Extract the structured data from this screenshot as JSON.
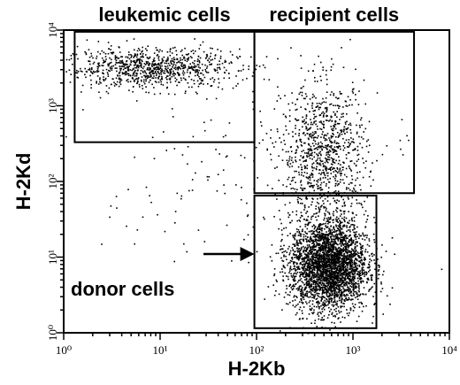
{
  "chart_data": {
    "type": "scatter",
    "xlabel": "H-2Kb",
    "ylabel": "H-2Kd",
    "x_scale": "log",
    "y_scale": "log",
    "xlim": [
      1,
      10000
    ],
    "ylim": [
      1,
      10000
    ],
    "x_tick_labels": [
      "10⁰",
      "10¹",
      "10²",
      "10³",
      "10⁴"
    ],
    "y_tick_labels": [
      "10⁰",
      "10¹",
      "10²",
      "10³",
      "10⁴"
    ],
    "grid": false,
    "gates": [
      {
        "label": "leukemic cells",
        "x_range": [
          1.3,
          95
        ],
        "y_range": [
          330,
          9500
        ]
      },
      {
        "label": "recipient cells",
        "x_range": [
          95,
          4300
        ],
        "y_range": [
          70,
          9500
        ]
      },
      {
        "label": "",
        "x_range": [
          95,
          1750
        ],
        "y_range": [
          1.15,
          65
        ]
      }
    ],
    "annotation": {
      "text": "donor cells",
      "arrow_to": [
        95,
        11
      ]
    },
    "populations": [
      {
        "center": [
          8,
          3200
        ],
        "spread_log": [
          0.45,
          0.13
        ],
        "count": 900
      },
      {
        "center": [
          500,
          250
        ],
        "spread_log": [
          0.22,
          0.45
        ],
        "count": 900
      },
      {
        "center": [
          550,
          8
        ],
        "spread_log": [
          0.2,
          0.3
        ],
        "count": 3200
      },
      {
        "center": [
          100,
          100
        ],
        "spread_log": [
          0.8,
          0.8
        ],
        "count": 200
      }
    ]
  }
}
